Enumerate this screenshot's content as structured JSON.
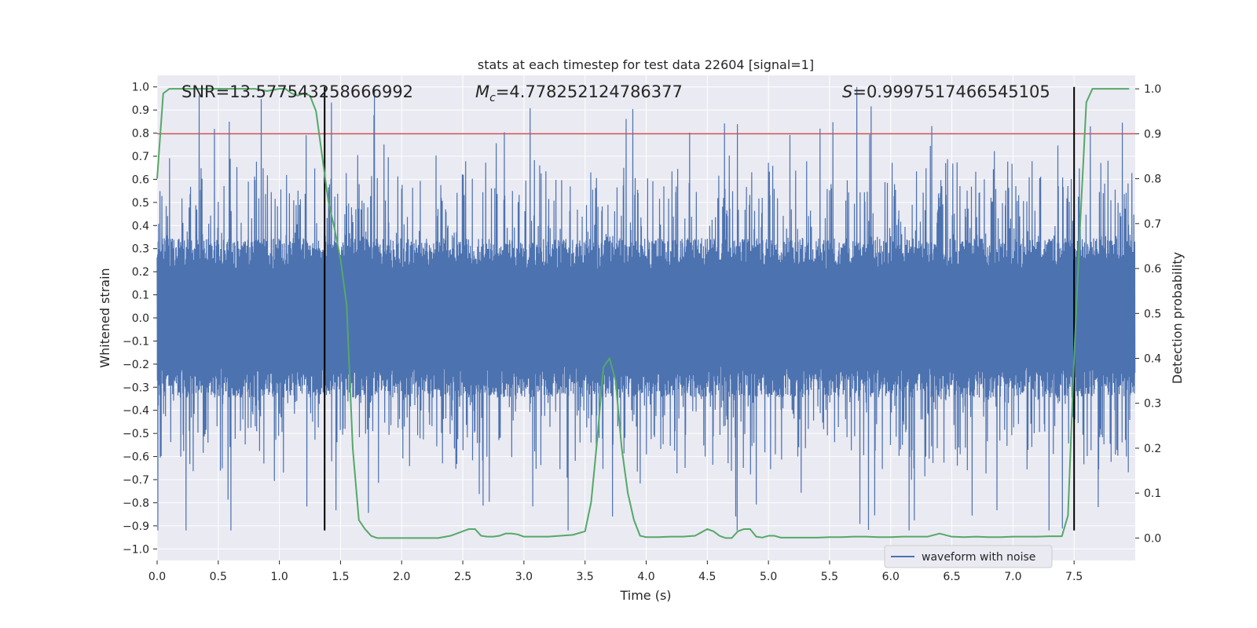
{
  "chart_data": {
    "type": "line",
    "title": "stats at each timestep for test data 22604 [signal=1]",
    "xlabel": "Time (s)",
    "ylabel": "Whitened strain",
    "y2label": "Detection probability",
    "xlim": [
      0.0,
      8.0
    ],
    "ylim": [
      -1.05,
      1.05
    ],
    "y2lim": [
      -0.05,
      1.03
    ],
    "x_ticks": [
      0.0,
      0.5,
      1.0,
      1.5,
      2.0,
      2.5,
      3.0,
      3.5,
      4.0,
      4.5,
      5.0,
      5.5,
      6.0,
      6.5,
      7.0,
      7.5
    ],
    "x_tick_labels": [
      "0.0",
      "0.5",
      "1.0",
      "1.5",
      "2.0",
      "2.5",
      "3.0",
      "3.5",
      "4.0",
      "4.5",
      "5.0",
      "5.5",
      "6.0",
      "6.5",
      "7.0",
      "7.5"
    ],
    "y_ticks": [
      -1.0,
      -0.9,
      -0.8,
      -0.7,
      -0.6,
      -0.5,
      -0.4,
      -0.3,
      -0.2,
      -0.1,
      0.0,
      0.1,
      0.2,
      0.3,
      0.4,
      0.5,
      0.6,
      0.7,
      0.8,
      0.9,
      1.0
    ],
    "y_tick_labels": [
      "−1.0",
      "−0.9",
      "−0.8",
      "−0.7",
      "−0.6",
      "−0.5",
      "−0.4",
      "−0.3",
      "−0.2",
      "−0.1",
      "0.0",
      "0.1",
      "0.2",
      "0.3",
      "0.4",
      "0.5",
      "0.6",
      "0.7",
      "0.8",
      "0.9",
      "1.0"
    ],
    "y2_ticks": [
      0.0,
      0.1,
      0.2,
      0.3,
      0.4,
      0.5,
      0.6,
      0.7,
      0.8,
      0.9,
      1.0
    ],
    "y2_tick_labels": [
      "0.0",
      "0.1",
      "0.2",
      "0.3",
      "0.4",
      "0.5",
      "0.6",
      "0.7",
      "0.8",
      "0.9",
      "1.0"
    ],
    "annotations": {
      "snr": "SNR=13.577543258666992",
      "mc_symbol": "M",
      "mc_sub": "c",
      "mc_value": "=4.778252124786377",
      "s_symbol": "S",
      "s_value": "=0.9997517466545105"
    },
    "legend": {
      "label": "waveform with noise",
      "placement": "lower-right"
    },
    "waveform": {
      "name": "waveform with noise",
      "color": "#4c72b0",
      "sample_rate_hz": 512,
      "core_envelope": 0.3,
      "max_peak": 1.0,
      "min_peak": -0.92
    },
    "threshold": {
      "value": 0.9,
      "axis": "right",
      "color": "#c44e52"
    },
    "vlines": {
      "x": [
        1.37,
        7.5
      ],
      "color": "#000000",
      "y_from": -0.92,
      "y_to": 1.0
    },
    "detection_probability": {
      "color": "#55a868",
      "x": [
        0.0,
        0.05,
        0.1,
        0.15,
        0.2,
        0.3,
        0.4,
        0.5,
        0.6,
        0.7,
        0.8,
        0.9,
        1.0,
        1.05,
        1.1,
        1.15,
        1.2,
        1.25,
        1.3,
        1.35,
        1.4,
        1.45,
        1.5,
        1.55,
        1.6,
        1.65,
        1.7,
        1.75,
        1.8,
        1.85,
        1.9,
        2.0,
        2.1,
        2.2,
        2.3,
        2.4,
        2.5,
        2.55,
        2.6,
        2.65,
        2.7,
        2.75,
        2.8,
        2.85,
        2.9,
        2.95,
        3.0,
        3.1,
        3.2,
        3.3,
        3.4,
        3.5,
        3.55,
        3.6,
        3.65,
        3.7,
        3.75,
        3.8,
        3.85,
        3.9,
        3.95,
        4.0,
        4.1,
        4.2,
        4.3,
        4.4,
        4.5,
        4.55,
        4.6,
        4.65,
        4.7,
        4.75,
        4.8,
        4.85,
        4.9,
        4.95,
        5.0,
        5.05,
        5.1,
        5.2,
        5.3,
        5.4,
        5.5,
        5.6,
        5.7,
        5.8,
        5.9,
        6.0,
        6.1,
        6.2,
        6.3,
        6.4,
        6.5,
        6.6,
        6.7,
        6.8,
        6.9,
        7.0,
        7.1,
        7.2,
        7.3,
        7.4,
        7.45,
        7.5,
        7.55,
        7.6,
        7.65,
        7.7,
        7.8,
        7.9,
        7.95
      ],
      "y": [
        0.8,
        0.99,
        1.0,
        1.0,
        1.0,
        1.0,
        1.0,
        1.0,
        1.0,
        1.0,
        1.0,
        0.995,
        1.0,
        1.0,
        0.99,
        0.985,
        0.99,
        0.985,
        0.95,
        0.85,
        0.75,
        0.69,
        0.62,
        0.52,
        0.2,
        0.04,
        0.02,
        0.005,
        0.0,
        0.0,
        0.0,
        0.0,
        0.0,
        0.0,
        0.0,
        0.005,
        0.015,
        0.02,
        0.02,
        0.005,
        0.003,
        0.003,
        0.005,
        0.01,
        0.01,
        0.008,
        0.003,
        0.003,
        0.003,
        0.005,
        0.007,
        0.015,
        0.08,
        0.22,
        0.38,
        0.4,
        0.35,
        0.2,
        0.1,
        0.04,
        0.005,
        0.002,
        0.002,
        0.003,
        0.003,
        0.005,
        0.02,
        0.015,
        0.005,
        0.0,
        0.0,
        0.015,
        0.02,
        0.02,
        0.003,
        0.001,
        0.005,
        0.005,
        0.001,
        0.001,
        0.001,
        0.001,
        0.002,
        0.002,
        0.003,
        0.003,
        0.002,
        0.002,
        0.003,
        0.003,
        0.003,
        0.01,
        0.003,
        0.002,
        0.003,
        0.002,
        0.002,
        0.003,
        0.003,
        0.003,
        0.004,
        0.004,
        0.05,
        0.4,
        0.7,
        0.97,
        1.0,
        1.0,
        1.0,
        1.0,
        1.0
      ]
    }
  }
}
